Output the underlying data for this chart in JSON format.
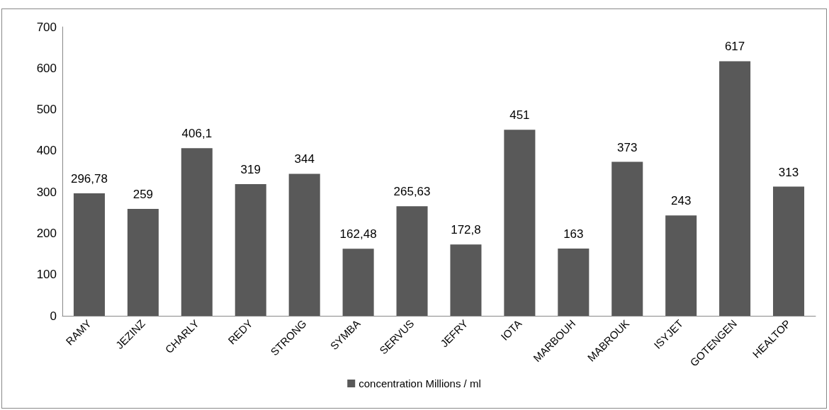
{
  "chart_data": {
    "type": "bar",
    "categories": [
      "RAMY",
      "JEZINZ",
      "CHARLY",
      "REDY",
      "STRONG",
      "SYMBA",
      "SERVUS",
      "JEFRY",
      "IOTA",
      "MARBOUH",
      "MABROUK",
      "ISYJET",
      "GOTENGEN",
      "HEALTOP"
    ],
    "series": [
      {
        "name": "concentration Millions / ml",
        "color": "#595959",
        "values": [
          296.78,
          259,
          406.1,
          319,
          344,
          162.48,
          265.63,
          172.8,
          451,
          163,
          373,
          243,
          617,
          313
        ]
      }
    ],
    "value_labels": [
      "296,78",
      "259",
      "406,1",
      "319",
      "344",
      "162,48",
      "265,63",
      "172,8",
      "451",
      "163",
      "373",
      "243",
      "617",
      "313"
    ],
    "ylim": [
      0,
      700
    ],
    "yticks": [
      0,
      100,
      200,
      300,
      400,
      500,
      600,
      700
    ],
    "grid": false,
    "legend": "bottom"
  }
}
